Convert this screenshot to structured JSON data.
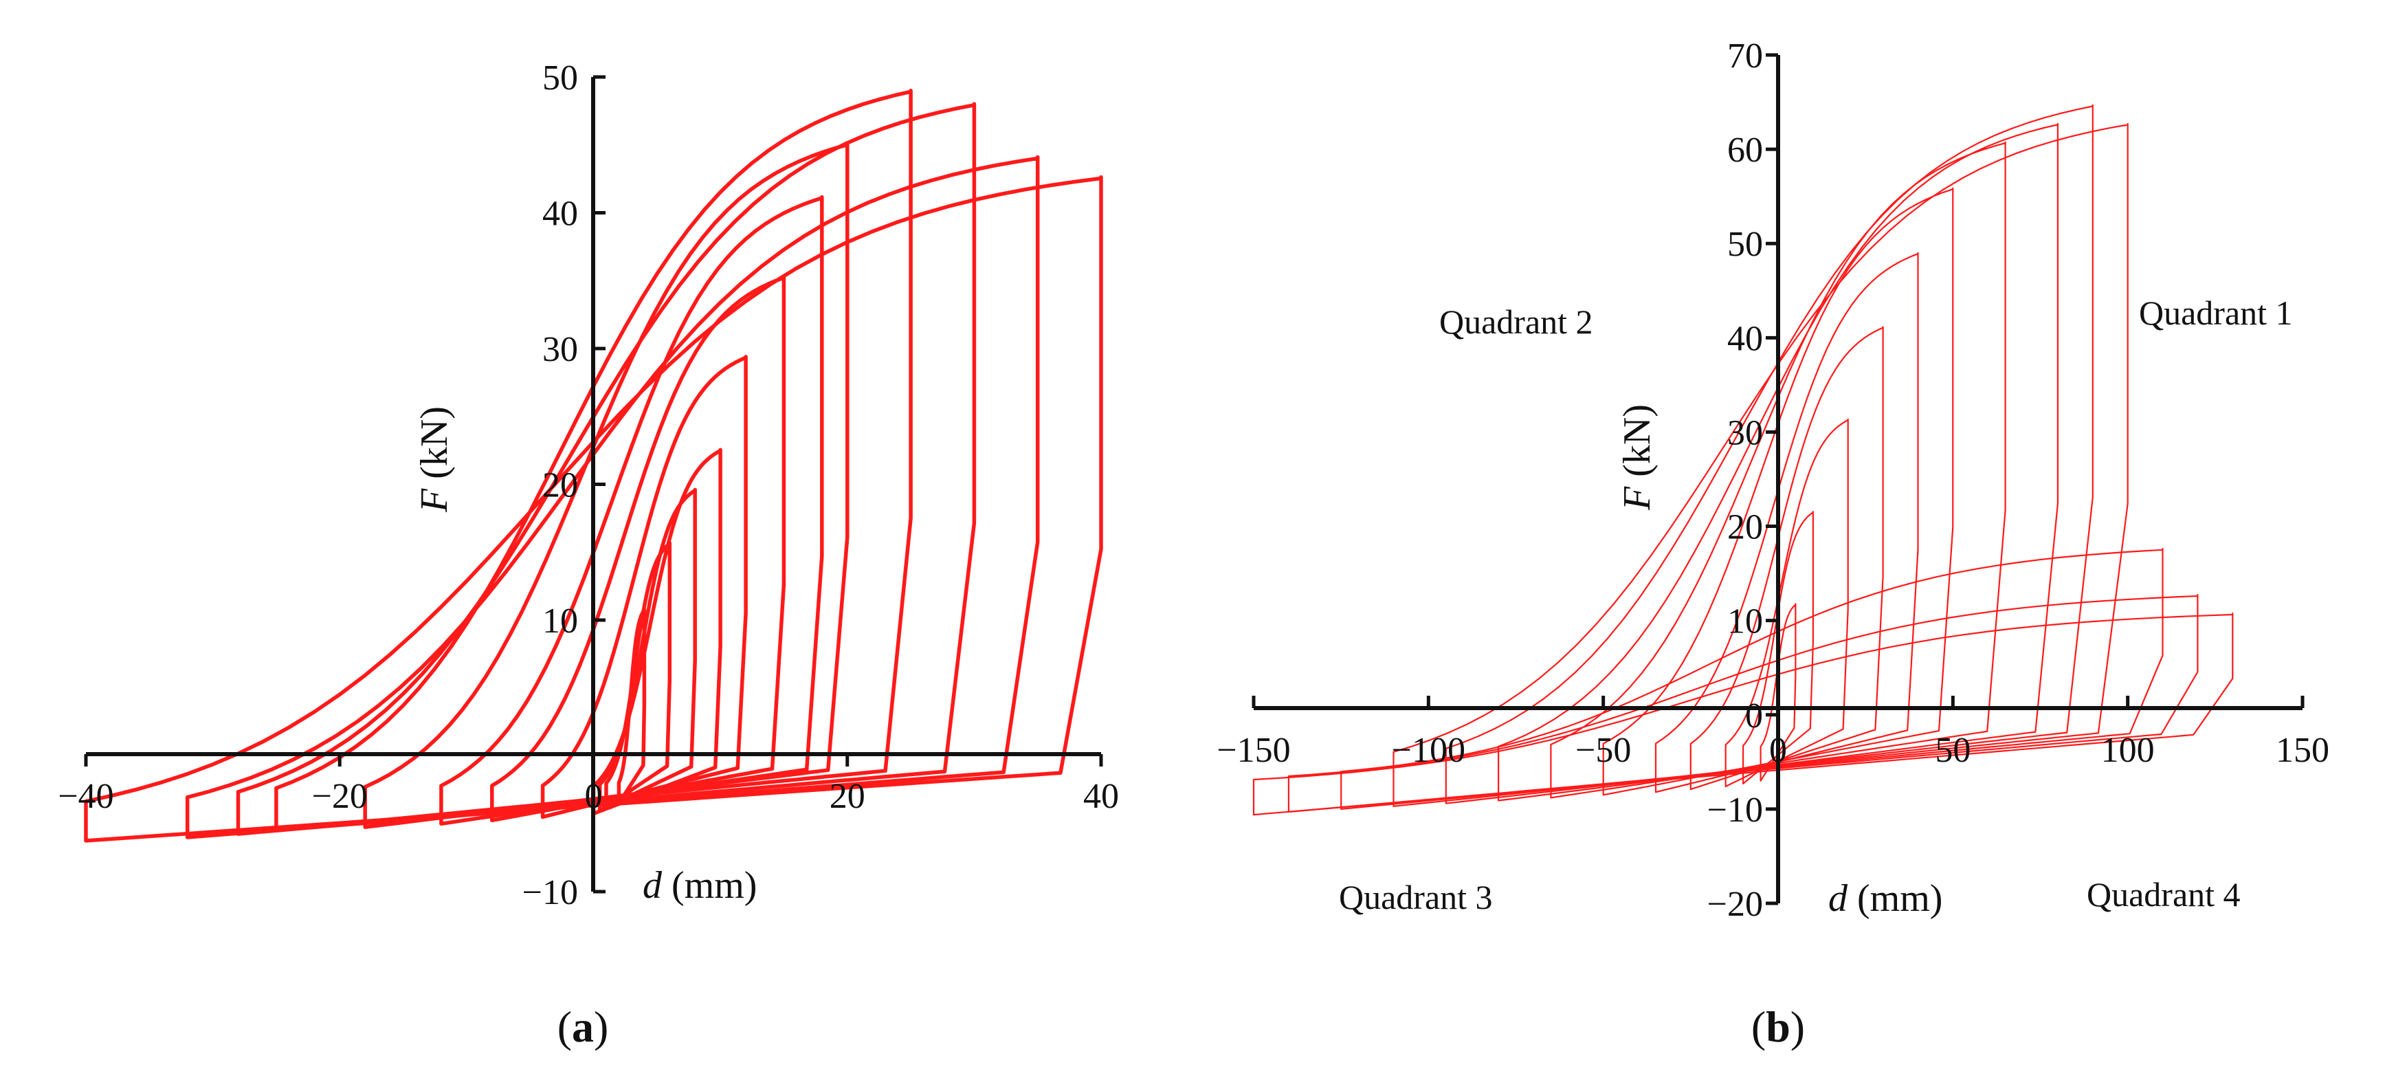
{
  "colors": {
    "curve": "#ff1a1a",
    "axis": "#111111",
    "background": "#ffffff"
  },
  "chart_data": [
    {
      "type": "line",
      "panel_label_open": "(",
      "panel_label_letter": "a",
      "panel_label_close": ")",
      "xlabel_symbol": "d",
      "xlabel_unit": "(mm)",
      "ylabel_symbol": "F",
      "ylabel_unit": "(kN)",
      "xlim": [
        -40,
        40
      ],
      "ylim": [
        -10,
        50
      ],
      "x_ticks": [
        -40,
        -20,
        0,
        20,
        40
      ],
      "x_tick_labels": [
        "−40",
        "−20",
        "0",
        "20",
        "40"
      ],
      "y_ticks": [
        -10,
        0,
        10,
        20,
        30,
        40,
        50
      ],
      "y_tick_labels": [
        "−10",
        "",
        "10",
        "20",
        "30",
        "40",
        "50"
      ],
      "series": [
        {
          "name": "hysteresis loops",
          "description": "cyclic load-displacement loops, positive force dominant",
          "loops": [
            {
              "xmin": 2,
              "xmax": 4,
              "peak": 11
            },
            {
              "xmin": 1,
              "xmax": 6,
              "peak": 16
            },
            {
              "xmin": 0.5,
              "xmax": 8,
              "peak": 20
            },
            {
              "xmin": 0,
              "xmax": 10,
              "peak": 23
            },
            {
              "xmin": -4,
              "xmax": 12,
              "peak": 30
            },
            {
              "xmin": -8,
              "xmax": 15,
              "peak": 36
            },
            {
              "xmin": -12,
              "xmax": 18,
              "peak": 42
            },
            {
              "xmin": -18,
              "xmax": 20,
              "peak": 46
            },
            {
              "xmin": -25,
              "xmax": 25,
              "peak": 50
            },
            {
              "xmin": -28,
              "xmax": 30,
              "peak": 49
            },
            {
              "xmin": -32,
              "xmax": 35,
              "peak": 45
            },
            {
              "xmin": -40,
              "xmax": 40,
              "peak": 43.5
            }
          ]
        }
      ]
    },
    {
      "type": "line",
      "panel_label_open": "(",
      "panel_label_letter": "b",
      "panel_label_close": ")",
      "xlabel_symbol": "d",
      "xlabel_unit": "(mm)",
      "ylabel_symbol": "F",
      "ylabel_unit": "(kN)",
      "xlim": [
        -150,
        150
      ],
      "ylim": [
        -20,
        70
      ],
      "x_ticks": [
        -150,
        -100,
        -50,
        0,
        50,
        100,
        150
      ],
      "x_tick_labels": [
        "−150",
        "−100",
        "−50",
        "0",
        "50",
        "100",
        "150"
      ],
      "y_ticks": [
        -20,
        -10,
        0,
        10,
        20,
        30,
        40,
        50,
        60,
        70
      ],
      "y_tick_labels": [
        "−20",
        "−10",
        "0",
        "10",
        "20",
        "30",
        "40",
        "50",
        "60",
        "70"
      ],
      "annotations": [
        "Quadrant 1",
        "Quadrant 2",
        "Quadrant 3",
        "Quadrant 4"
      ],
      "series": [
        {
          "name": "hysteresis loops",
          "description": "cyclic load-displacement loops with degradation to low force at large displacement",
          "loops": [
            {
              "xmin": -5,
              "xmax": 5,
              "peak": 12
            },
            {
              "xmin": -10,
              "xmax": 10,
              "peak": 22
            },
            {
              "xmin": -15,
              "xmax": 20,
              "peak": 32
            },
            {
              "xmin": -25,
              "xmax": 30,
              "peak": 42
            },
            {
              "xmin": -35,
              "xmax": 40,
              "peak": 50
            },
            {
              "xmin": -50,
              "xmax": 50,
              "peak": 57
            },
            {
              "xmin": -65,
              "xmax": 65,
              "peak": 62
            },
            {
              "xmin": -80,
              "xmax": 80,
              "peak": 64
            },
            {
              "xmin": -95,
              "xmax": 90,
              "peak": 66
            },
            {
              "xmin": -110,
              "xmax": 100,
              "peak": 64
            },
            {
              "xmin": -125,
              "xmax": 110,
              "peak": 18
            },
            {
              "xmin": -140,
              "xmax": 120,
              "peak": 13
            },
            {
              "xmin": -150,
              "xmax": 130,
              "peak": 11
            }
          ]
        }
      ]
    }
  ]
}
